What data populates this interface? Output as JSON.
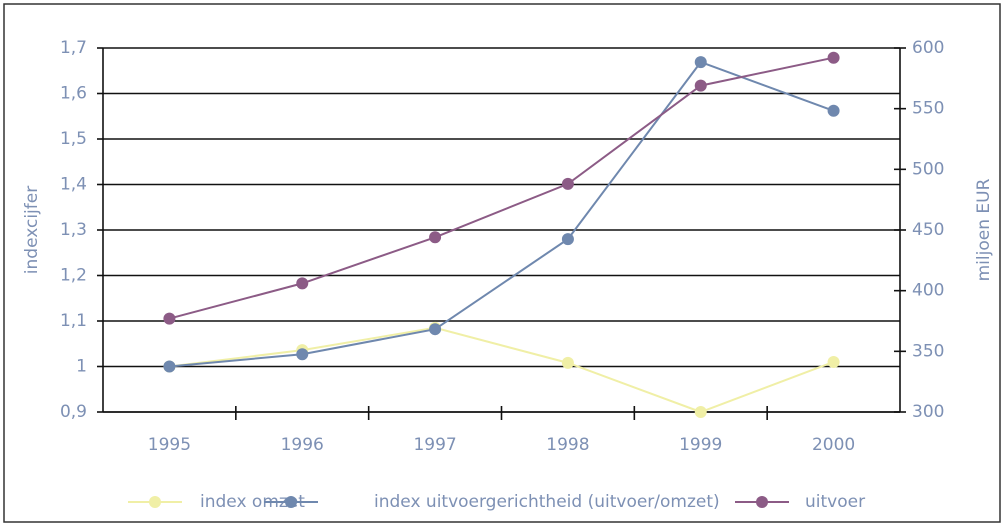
{
  "chart_data": {
    "type": "line",
    "categories": [
      "1995",
      "1996",
      "1997",
      "1998",
      "1999",
      "2000"
    ],
    "series": [
      {
        "name": "index omzet",
        "color": "#f0efa6",
        "values": [
          1.0,
          1.036,
          1.085,
          1.008,
          0.9,
          1.01
        ]
      },
      {
        "name": "index uitvoergerichtheid (uitvoer/omzet)",
        "color": "#6f88ae",
        "values": [
          1.0,
          1.027,
          1.082,
          1.28,
          1.669,
          1.562
        ]
      },
      {
        "name": "uitvoer",
        "color": "#8c5b86",
        "axis": "y2",
        "values": [
          377,
          406,
          444,
          488,
          569,
          592
        ]
      }
    ],
    "ylabel": "indexcijfer",
    "y2label": "miljoen EUR",
    "ylim": [
      0.9,
      1.7
    ],
    "yticks": [
      {
        "value": 0.9,
        "label": "0,9"
      },
      1,
      {
        "value": 1.1,
        "label": "1,1"
      },
      {
        "value": 1.2,
        "label": "1,2"
      },
      {
        "value": 1.3,
        "label": "1,3"
      },
      {
        "value": 1.4,
        "label": "1,4"
      },
      {
        "value": 1.5,
        "label": "1,5"
      },
      {
        "value": 1.6,
        "label": "1,6"
      },
      {
        "value": 1.7,
        "label": "1,7"
      }
    ],
    "y2lim": [
      300,
      600
    ],
    "y2ticks": [
      300,
      350,
      400,
      450,
      500,
      550,
      600
    ],
    "grid": true,
    "legend": "bottom"
  }
}
